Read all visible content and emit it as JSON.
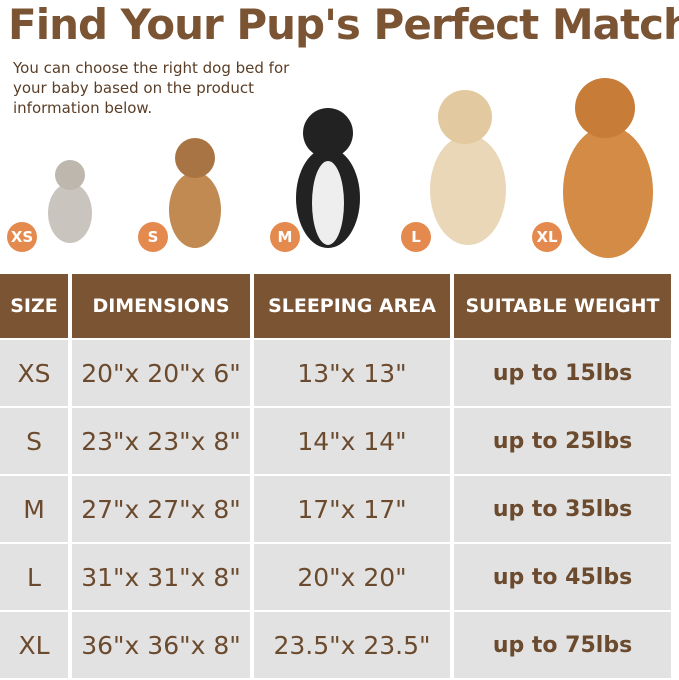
{
  "title": "Find Your Pup's Perfect Match",
  "subtitle": "You can choose the right dog bed for your baby based on the product information below.",
  "pets": [
    {
      "badge": "XS",
      "animal": "cat",
      "color": "#c9c4bd"
    },
    {
      "badge": "S",
      "animal": "french-bulldog",
      "color": "#c08a52"
    },
    {
      "badge": "M",
      "animal": "border-collie",
      "color": "#222222"
    },
    {
      "badge": "L",
      "animal": "golden-retriever",
      "color": "#e9d7b8"
    },
    {
      "badge": "XL",
      "animal": "golden-retriever",
      "color": "#d38b45"
    }
  ],
  "colors": {
    "header": "#7b5434",
    "cell": "#e2e2e2",
    "text": "#6b4a2e",
    "badge": "#e58a4e"
  },
  "table": {
    "headers": [
      "SIZE",
      "DIMENSIONS",
      "SLEEPING AREA",
      "SUITABLE WEIGHT"
    ],
    "rows": [
      [
        "XS",
        "20\"x 20\"x 6\"",
        "13\"x 13\"",
        "up to 15lbs"
      ],
      [
        "S",
        "23\"x 23\"x 8\"",
        "14\"x 14\"",
        "up to 25lbs"
      ],
      [
        "M",
        "27\"x 27\"x 8\"",
        "17\"x 17\"",
        "up to 35lbs"
      ],
      [
        "L",
        "31\"x 31\"x 8\"",
        "20\"x 20\"",
        "up to 45lbs"
      ],
      [
        "XL",
        "36\"x 36\"x 8\"",
        "23.5\"x 23.5\"",
        "up to 75lbs"
      ]
    ]
  }
}
